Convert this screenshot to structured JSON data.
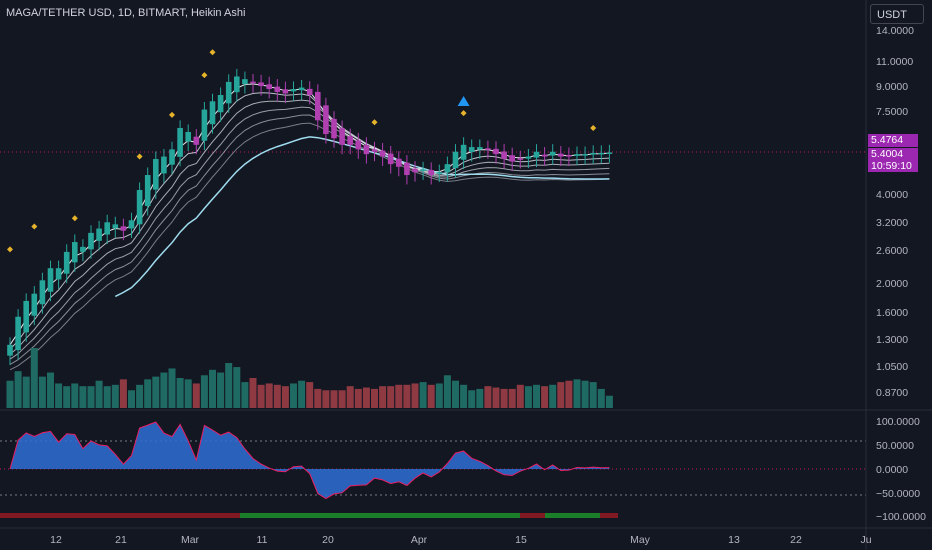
{
  "header": {
    "title": "MAGA/TETHER USD, 1D, BITMART, Heikin Ashi",
    "currency": "USDT"
  },
  "price_tags": {
    "upper": "5.4764",
    "lower": "5.4004",
    "countdown": "10:59:10"
  },
  "colors": {
    "background": "#131722",
    "bull": "#26a69a",
    "bear": "#b03fb0",
    "volume_bull": "#1f6b64",
    "volume_bear": "#8f3a42",
    "tag_purple": "#9c27b0",
    "ribbon": "#ffffff",
    "slow_ma": "#9fdcee"
  },
  "chart_data": [
    {
      "type": "candlestick",
      "title": "MAGA/TETHER USD, 1D, BITMART, Heikin Ashi",
      "scale": "log",
      "y_ticks": [
        "14.0000",
        "11.0000",
        "9.0000",
        "7.5000",
        "5.4764",
        "5.4004",
        "4.0000",
        "3.2000",
        "2.6000",
        "2.0000",
        "1.6000",
        "1.3000",
        "1.0500",
        "0.8700"
      ],
      "x_ticks": [
        "12",
        "21",
        "Mar",
        "11",
        "20",
        "Apr",
        "15",
        "May",
        "13",
        "22",
        "Ju"
      ],
      "close_values": [
        1.25,
        1.55,
        1.75,
        1.85,
        2.05,
        2.25,
        2.25,
        2.55,
        2.75,
        2.65,
        2.95,
        3.05,
        3.2,
        3.15,
        3.0,
        3.25,
        4.1,
        4.6,
        5.2,
        5.3,
        5.6,
        6.6,
        6.4,
        5.8,
        7.6,
        8.1,
        8.5,
        9.4,
        9.8,
        9.6,
        9.3,
        9.1,
        8.9,
        8.7,
        8.6,
        8.9,
        9.0,
        8.5,
        7.0,
        6.3,
        6.1,
        5.8,
        5.8,
        5.6,
        5.4,
        5.5,
        5.3,
        5.0,
        4.9,
        4.6,
        4.7,
        4.8,
        4.6,
        4.7,
        5.0,
        5.5,
        5.8,
        5.7,
        5.7,
        5.6,
        5.4,
        5.2,
        5.1,
        5.2,
        5.3,
        5.5,
        5.3,
        5.5,
        5.3,
        5.3,
        5.4,
        5.4,
        5.45,
        5.45,
        5.47
      ],
      "volume_values": [
        20,
        27,
        23,
        44,
        23,
        26,
        18,
        16,
        18,
        16,
        16,
        20,
        16,
        17,
        21,
        13,
        17,
        21,
        23,
        26,
        29,
        22,
        21,
        18,
        24,
        28,
        26,
        33,
        30,
        19,
        22,
        17,
        18,
        17,
        16,
        18,
        20,
        19,
        14,
        13,
        13,
        13,
        16,
        14,
        15,
        14,
        16,
        16,
        17,
        17,
        18,
        19,
        17,
        18,
        24,
        20,
        17,
        13,
        14,
        16,
        15,
        14,
        14,
        17,
        16,
        17,
        16,
        17,
        19,
        20,
        21,
        20,
        19,
        14,
        9
      ],
      "oscillator": {
        "y_ticks": [
          "100.0000",
          "50.0000",
          "0.0000",
          "−50.0000",
          "−100.0000"
        ],
        "levels": [
          60,
          -53
        ]
      }
    }
  ]
}
